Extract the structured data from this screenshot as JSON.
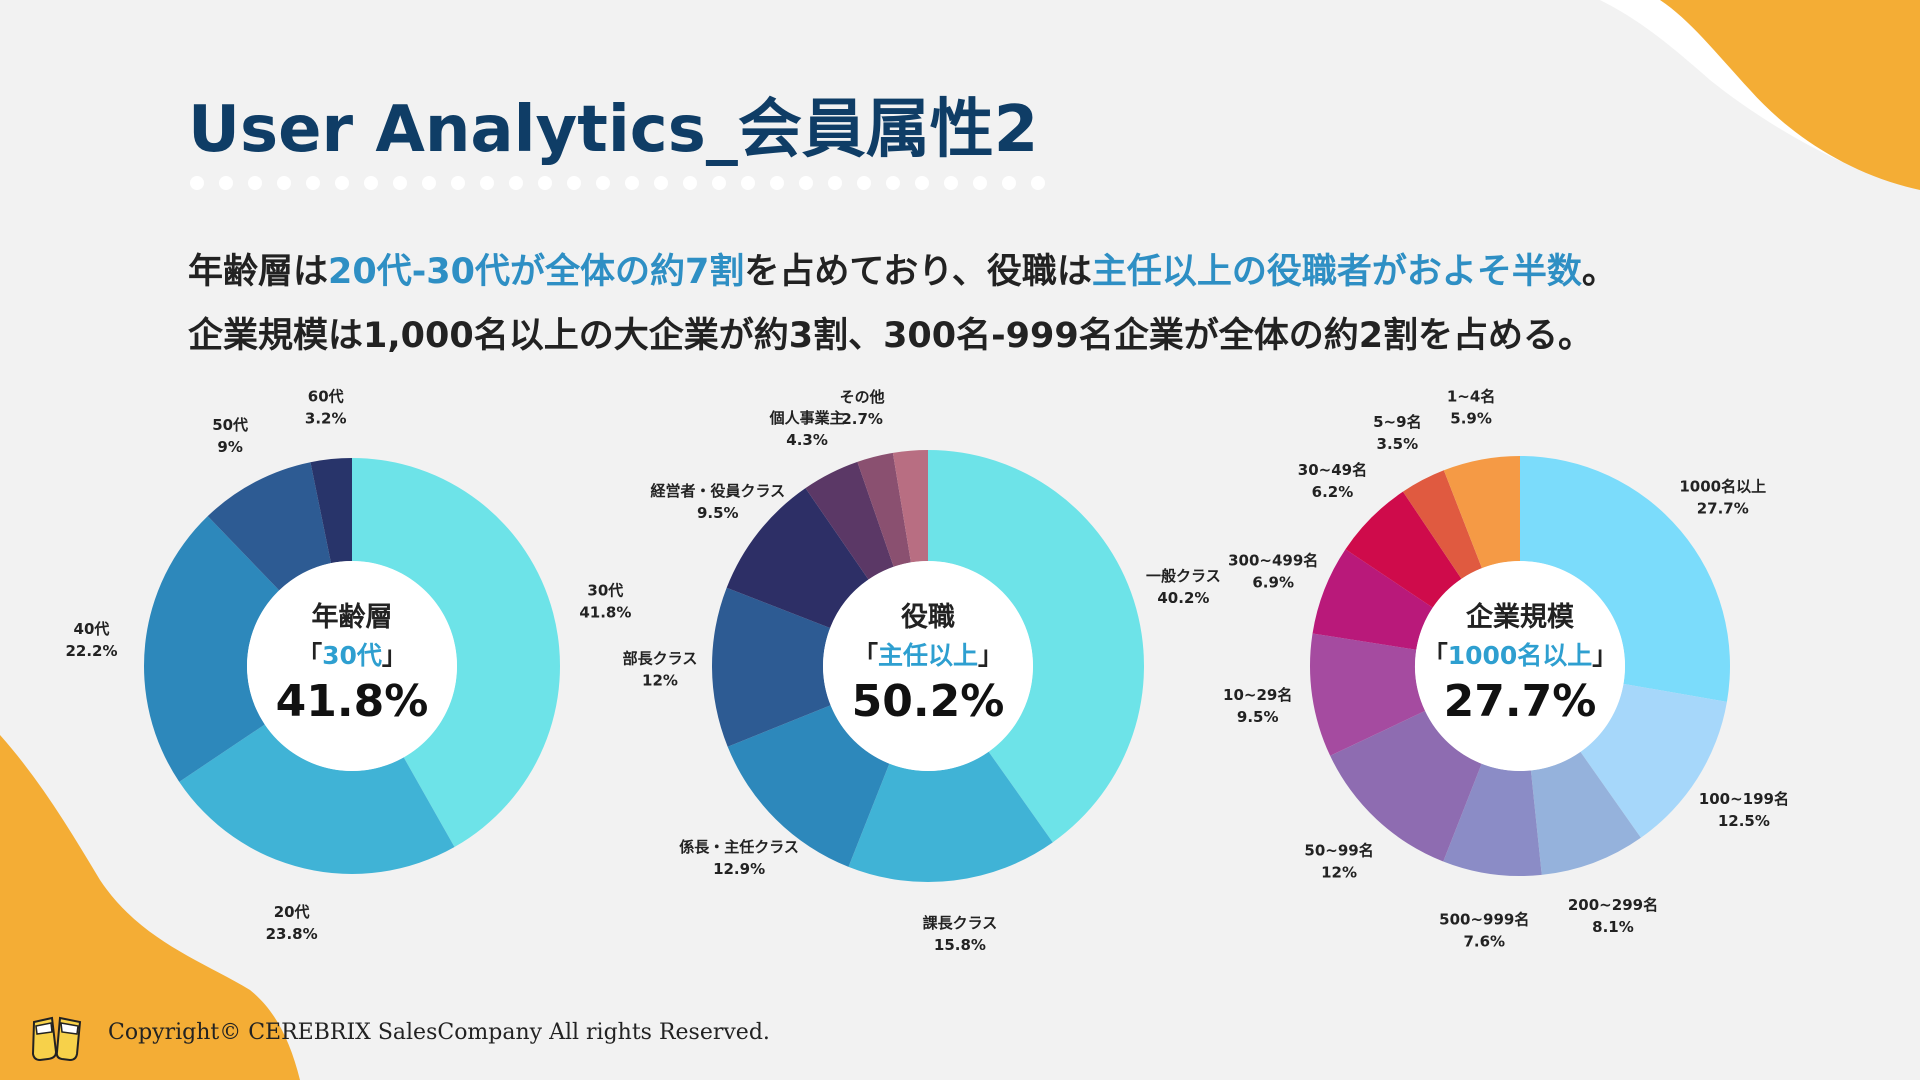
{
  "page": {
    "title": "User Analytics_会員属性2",
    "summary_line1": [
      {
        "text": "年齢層は",
        "hl": false
      },
      {
        "text": "20代-30代が全体の約7割",
        "hl": true
      },
      {
        "text": "を占めており、役職は",
        "hl": false
      },
      {
        "text": "主任以上の役職者がおよそ半数",
        "hl": true
      },
      {
        "text": "。",
        "hl": false
      }
    ],
    "summary_line2": "企業規模は1,000名以上の大企業が約3割、300名-999名企業が全体の約2割を占める。",
    "copyright": "Copyright© CEREBRIX SalesCompany All rights Reserved.",
    "colors": {
      "title": "#0f3d66",
      "highlight": "#2e8fc4",
      "accent_orange": "#f4ad35",
      "background": "#f2f2f2"
    }
  },
  "chart_data": [
    {
      "type": "pie",
      "donut": true,
      "center": {
        "caption": "年齢層",
        "sub_open": "「",
        "sub_highlight": "30代",
        "sub_close": "」",
        "value": "41.8%"
      },
      "slices": [
        {
          "label": "30代",
          "value_text": "41.8%",
          "value": 41.8,
          "color": "#6de3e8"
        },
        {
          "label": "20代",
          "value_text": "23.8%",
          "value": 23.8,
          "color": "#40b3d6"
        },
        {
          "label": "40代",
          "value_text": "22.2%",
          "value": 22.2,
          "color": "#2d88bb"
        },
        {
          "label": "50代",
          "value_text": "9%",
          "value": 9,
          "color": "#2d5b93"
        },
        {
          "label": "60代",
          "value_text": "3.2%",
          "value": 3.2,
          "color": "#28346a"
        }
      ]
    },
    {
      "type": "pie",
      "donut": true,
      "center": {
        "caption": "役職",
        "sub_open": "「",
        "sub_highlight": "主任以上",
        "sub_close": "」",
        "value": "50.2%"
      },
      "slices": [
        {
          "label": "一般クラス",
          "value_text": "40.2%",
          "value": 40.2,
          "color": "#6de3e8"
        },
        {
          "label": "課長クラス",
          "value_text": "15.8%",
          "value": 15.8,
          "color": "#40b3d6"
        },
        {
          "label": "係長・主任クラス",
          "value_text": "12.9%",
          "value": 12.9,
          "color": "#2d88bb"
        },
        {
          "label": "部長クラス",
          "value_text": "12%",
          "value": 12,
          "color": "#2d5b93"
        },
        {
          "label": "経営者・役員クラス",
          "value_text": "9.5%",
          "value": 9.5,
          "color": "#2d2f66"
        },
        {
          "label": "個人事業主",
          "value_text": "4.3%",
          "value": 4.3,
          "color": "#5b3866"
        },
        {
          "label": "その他",
          "value_text": "2.7%",
          "value": 2.7,
          "color": "#8a5070"
        },
        {
          "label": "",
          "value_text": "",
          "value": 2.6,
          "color": "#b86e82"
        }
      ]
    },
    {
      "type": "pie",
      "donut": true,
      "center": {
        "caption": "企業規模",
        "sub_open": "「",
        "sub_highlight": "1000名以上",
        "sub_close": "」",
        "value": "27.7%"
      },
      "slices": [
        {
          "label": "1000名以上",
          "value_text": "27.7%",
          "value": 27.7,
          "color": "#7bdcfb"
        },
        {
          "label": "100~199名",
          "value_text": "12.5%",
          "value": 12.5,
          "color": "#a6d7fa"
        },
        {
          "label": "200~299名",
          "value_text": "8.1%",
          "value": 8.1,
          "color": "#95b2dc"
        },
        {
          "label": "500~999名",
          "value_text": "7.6%",
          "value": 7.6,
          "color": "#8b8cc6"
        },
        {
          "label": "50~99名",
          "value_text": "12%",
          "value": 12,
          "color": "#8e6cb1"
        },
        {
          "label": "10~29名",
          "value_text": "9.5%",
          "value": 9.5,
          "color": "#a54ba0"
        },
        {
          "label": "300~499名",
          "value_text": "6.9%",
          "value": 6.9,
          "color": "#b9197a"
        },
        {
          "label": "30~49名",
          "value_text": "6.2%",
          "value": 6.2,
          "color": "#cf0b4b"
        },
        {
          "label": "5~9名",
          "value_text": "3.5%",
          "value": 3.5,
          "color": "#e05a40"
        },
        {
          "label": "1~4名",
          "value_text": "5.9%",
          "value": 5.9,
          "color": "#f59a45"
        }
      ]
    }
  ]
}
